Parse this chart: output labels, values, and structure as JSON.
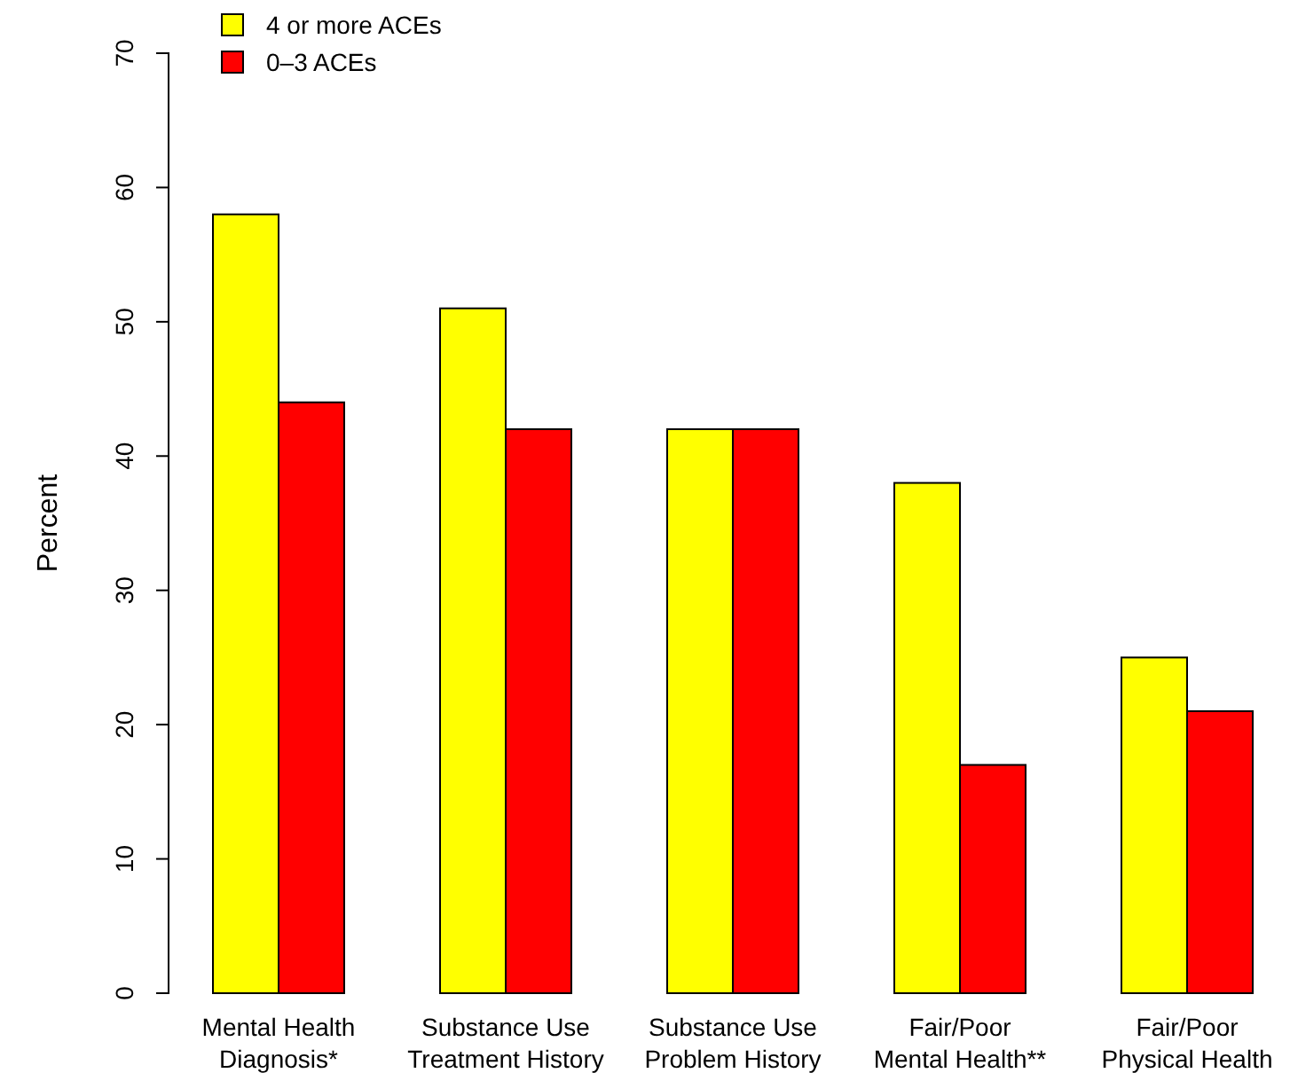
{
  "chart_data": {
    "type": "bar",
    "ylabel": "Percent",
    "categories": [
      "Mental Health\nDiagnosis*",
      "Substance Use\nTreatment History",
      "Substance Use\nProblem History",
      "Fair/Poor\nMental Health**",
      "Fair/Poor\nPhysical Health"
    ],
    "series": [
      {
        "name": "4 or more ACEs",
        "color": "#ffff00",
        "values": [
          58,
          51,
          42,
          38,
          25
        ]
      },
      {
        "name": "0–3 ACEs",
        "color": "#ff0000",
        "values": [
          44,
          42,
          42,
          17,
          21
        ]
      }
    ],
    "ylim": [
      0,
      70
    ],
    "yticks": [
      0,
      10,
      20,
      30,
      40,
      50,
      60,
      70
    ],
    "grid": false,
    "legend": "top left"
  }
}
